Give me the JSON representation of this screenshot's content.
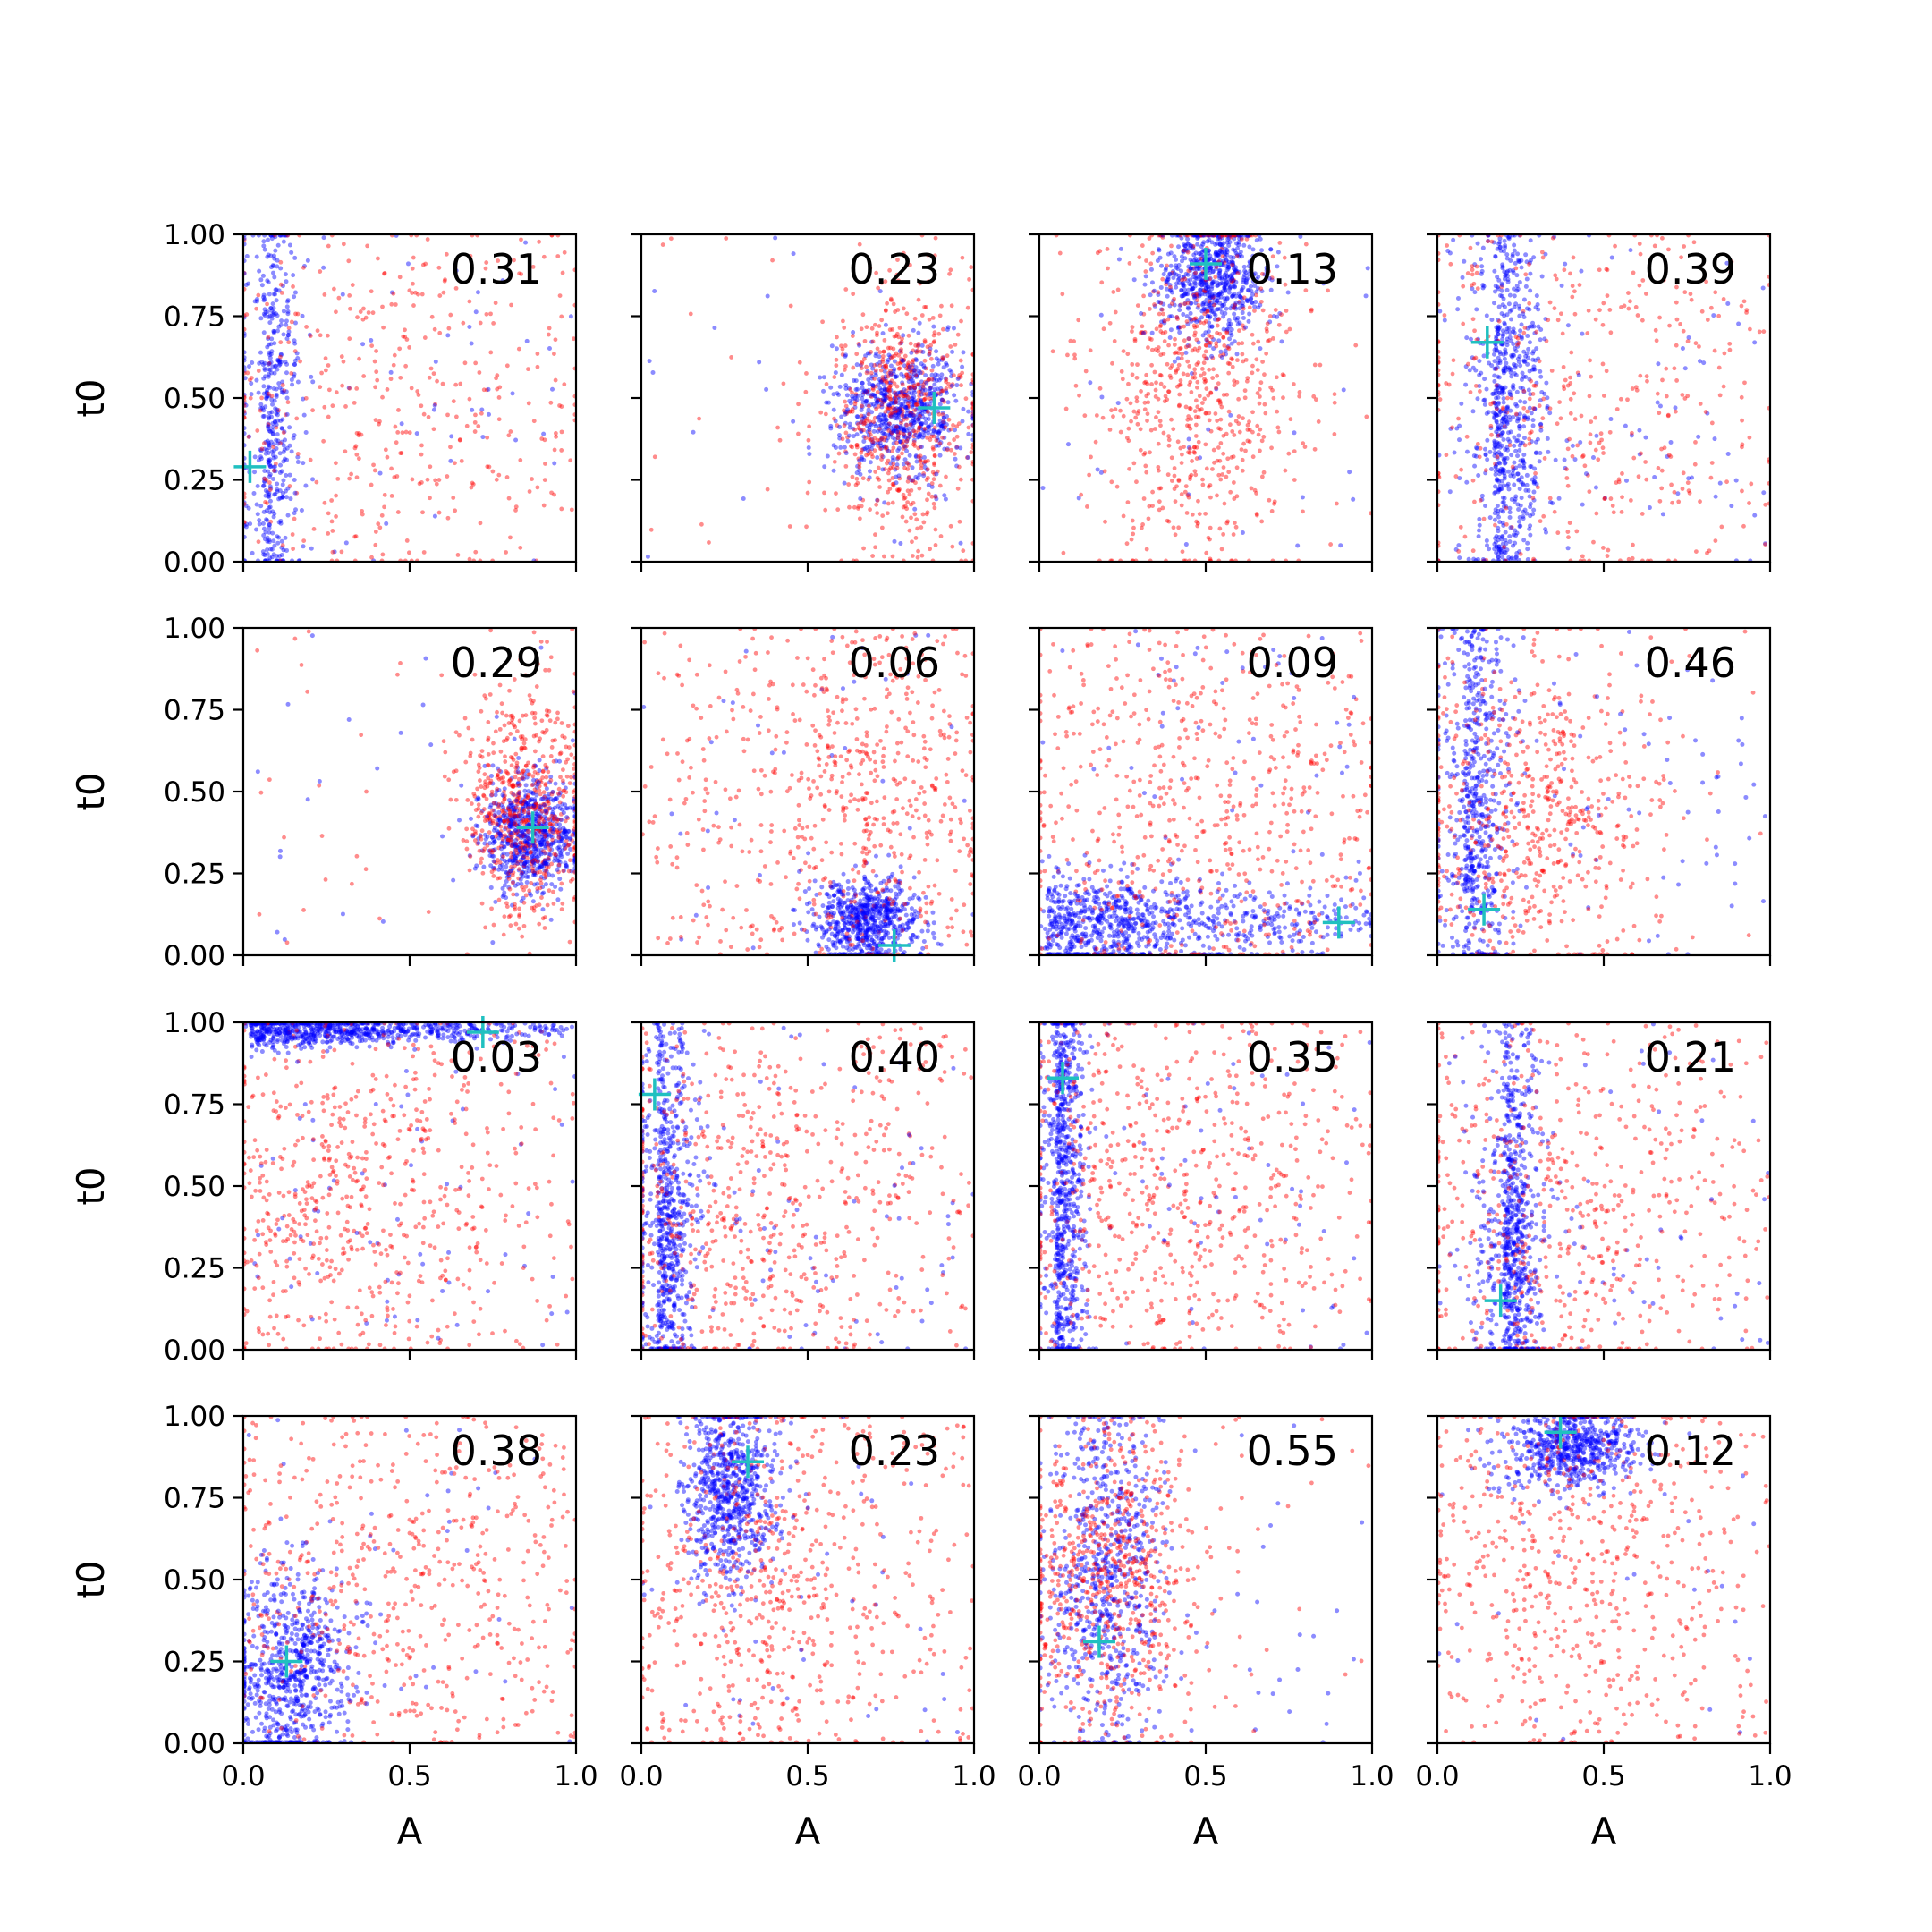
{
  "chart_data": {
    "type": "scatter",
    "layout": "4x4 grid of scatter panels",
    "xlabel": "A",
    "ylabel": "t0",
    "xlim": [
      0,
      1
    ],
    "ylim": [
      0,
      1
    ],
    "x_ticks": [
      "0.0",
      "0.5",
      "1.0"
    ],
    "y_ticks": [
      "0.00",
      "0.25",
      "0.50",
      "0.75",
      "1.00"
    ],
    "colors": {
      "series_a": "#ff0000",
      "series_b": "#0000ff",
      "marker": "#20c0c0"
    },
    "panels": [
      {
        "label": "0.31",
        "marker": [
          0.02,
          0.29
        ],
        "red": {
          "kind": "spread",
          "cx": 0.45,
          "cy": 0.5,
          "sx": 0.3,
          "sy": 0.3,
          "n": 420
        },
        "blue": {
          "kind": "column",
          "cx": 0.06,
          "cy": 0.5,
          "sx": 0.05,
          "sy": 0.35,
          "n": 520
        }
      },
      {
        "label": "0.23",
        "marker": [
          0.88,
          0.47
        ],
        "red": {
          "kind": "blob",
          "cx": 0.78,
          "cy": 0.45,
          "sx": 0.11,
          "sy": 0.2,
          "n": 650
        },
        "blue": {
          "kind": "blob",
          "cx": 0.77,
          "cy": 0.46,
          "sx": 0.1,
          "sy": 0.1,
          "n": 700
        }
      },
      {
        "label": "0.13",
        "marker": [
          0.5,
          0.91
        ],
        "red": {
          "kind": "blob",
          "cx": 0.48,
          "cy": 0.55,
          "sx": 0.15,
          "sy": 0.28,
          "n": 700
        },
        "blue": {
          "kind": "blob",
          "cx": 0.52,
          "cy": 0.86,
          "sx": 0.08,
          "sy": 0.09,
          "n": 700
        }
      },
      {
        "label": "0.39",
        "marker": [
          0.15,
          0.67
        ],
        "red": {
          "kind": "spread",
          "cx": 0.4,
          "cy": 0.5,
          "sx": 0.3,
          "sy": 0.3,
          "n": 420
        },
        "blue": {
          "kind": "column",
          "cx": 0.17,
          "cy": 0.45,
          "sx": 0.07,
          "sy": 0.25,
          "n": 800
        }
      },
      {
        "label": "0.29",
        "marker": [
          0.87,
          0.39
        ],
        "red": {
          "kind": "blob",
          "cx": 0.84,
          "cy": 0.45,
          "sx": 0.09,
          "sy": 0.18,
          "n": 650
        },
        "blue": {
          "kind": "blob",
          "cx": 0.86,
          "cy": 0.37,
          "sx": 0.07,
          "sy": 0.09,
          "n": 700
        }
      },
      {
        "label": "0.06",
        "marker": [
          0.76,
          0.03
        ],
        "red": {
          "kind": "spread",
          "cx": 0.65,
          "cy": 0.5,
          "sx": 0.2,
          "sy": 0.25,
          "n": 650
        },
        "blue": {
          "kind": "blob",
          "cx": 0.68,
          "cy": 0.11,
          "sx": 0.08,
          "sy": 0.06,
          "n": 700
        }
      },
      {
        "label": "0.09",
        "marker": [
          0.9,
          0.1
        ],
        "red": {
          "kind": "spread",
          "cx": 0.45,
          "cy": 0.45,
          "sx": 0.28,
          "sy": 0.28,
          "n": 600
        },
        "blue": {
          "kind": "streak",
          "cx": 0.5,
          "cy": 0.1,
          "sx": 0.3,
          "sy": 0.035,
          "n": 900
        }
      },
      {
        "label": "0.46",
        "marker": [
          0.14,
          0.14
        ],
        "red": {
          "kind": "blob",
          "cx": 0.3,
          "cy": 0.45,
          "sx": 0.2,
          "sy": 0.25,
          "n": 600
        },
        "blue": {
          "kind": "column",
          "cx": 0.08,
          "cy": 0.4,
          "sx": 0.06,
          "sy": 0.3,
          "n": 650
        }
      },
      {
        "label": "0.03",
        "marker": [
          0.72,
          0.97
        ],
        "red": {
          "kind": "spread",
          "cx": 0.3,
          "cy": 0.45,
          "sx": 0.22,
          "sy": 0.28,
          "n": 650
        },
        "blue": {
          "kind": "streak",
          "cx": 0.6,
          "cy": 0.975,
          "sx": 0.3,
          "sy": 0.012,
          "n": 800
        }
      },
      {
        "label": "0.40",
        "marker": [
          0.04,
          0.78
        ],
        "red": {
          "kind": "spread",
          "cx": 0.3,
          "cy": 0.4,
          "sx": 0.25,
          "sy": 0.28,
          "n": 650
        },
        "blue": {
          "kind": "column",
          "cx": 0.05,
          "cy": 0.3,
          "sx": 0.05,
          "sy": 0.25,
          "n": 750
        }
      },
      {
        "label": "0.35",
        "marker": [
          0.07,
          0.83
        ],
        "red": {
          "kind": "spread",
          "cx": 0.35,
          "cy": 0.5,
          "sx": 0.25,
          "sy": 0.28,
          "n": 650
        },
        "blue": {
          "kind": "column",
          "cx": 0.05,
          "cy": 0.5,
          "sx": 0.04,
          "sy": 0.32,
          "n": 800
        }
      },
      {
        "label": "0.21",
        "marker": [
          0.19,
          0.15
        ],
        "red": {
          "kind": "spread",
          "cx": 0.35,
          "cy": 0.4,
          "sx": 0.25,
          "sy": 0.28,
          "n": 550
        },
        "blue": {
          "kind": "column",
          "cx": 0.2,
          "cy": 0.28,
          "sx": 0.05,
          "sy": 0.22,
          "n": 800
        }
      },
      {
        "label": "0.38",
        "marker": [
          0.13,
          0.25
        ],
        "red": {
          "kind": "spread",
          "cx": 0.45,
          "cy": 0.5,
          "sx": 0.28,
          "sy": 0.28,
          "n": 550
        },
        "blue": {
          "kind": "blob",
          "cx": 0.14,
          "cy": 0.22,
          "sx": 0.09,
          "sy": 0.15,
          "n": 750
        }
      },
      {
        "label": "0.23",
        "marker": [
          0.32,
          0.86
        ],
        "red": {
          "kind": "spread",
          "cx": 0.35,
          "cy": 0.45,
          "sx": 0.2,
          "sy": 0.28,
          "n": 650
        },
        "blue": {
          "kind": "blob",
          "cx": 0.27,
          "cy": 0.77,
          "sx": 0.07,
          "sy": 0.15,
          "n": 750
        }
      },
      {
        "label": "0.55",
        "marker": [
          0.18,
          0.31
        ],
        "red": {
          "kind": "blob",
          "cx": 0.22,
          "cy": 0.5,
          "sx": 0.14,
          "sy": 0.25,
          "n": 700
        },
        "blue": {
          "kind": "blob",
          "cx": 0.2,
          "cy": 0.5,
          "sx": 0.09,
          "sy": 0.25,
          "n": 700
        }
      },
      {
        "label": "0.12",
        "marker": [
          0.37,
          0.95
        ],
        "red": {
          "kind": "spread",
          "cx": 0.4,
          "cy": 0.6,
          "sx": 0.22,
          "sy": 0.3,
          "n": 600
        },
        "blue": {
          "kind": "blob",
          "cx": 0.4,
          "cy": 0.9,
          "sx": 0.1,
          "sy": 0.06,
          "n": 650
        }
      }
    ]
  }
}
